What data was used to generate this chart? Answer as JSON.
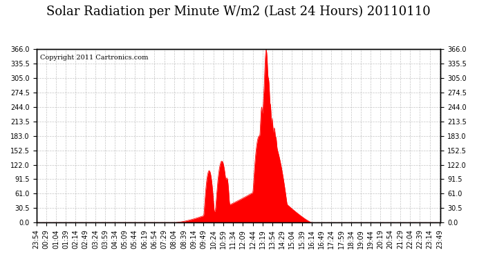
{
  "title": "Solar Radiation per Minute W/m2 (Last 24 Hours) 20110110",
  "copyright_text": "Copyright 2011 Cartronics.com",
  "y_min": 0.0,
  "y_max": 366.0,
  "y_ticks": [
    0.0,
    30.5,
    61.0,
    91.5,
    122.0,
    152.5,
    183.0,
    213.5,
    244.0,
    274.5,
    305.0,
    335.5,
    366.0
  ],
  "fill_color": "#FF0000",
  "line_color": "#FF0000",
  "dashed_line_color": "#FF0000",
  "background_color": "#FFFFFF",
  "grid_color": "#AAAAAA",
  "border_color": "#000000",
  "title_fontsize": 13,
  "tick_fontsize": 7,
  "copyright_fontsize": 7,
  "num_points": 1440,
  "sunrise_index": 480,
  "sunset_index": 975
}
